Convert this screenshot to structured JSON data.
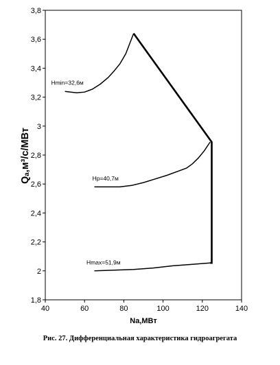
{
  "caption": "Рис. 27. Дифференциальная характеристика гидроагрегата",
  "chart_data": {
    "type": "line",
    "title": "",
    "xlabel": "Na,МВт",
    "ylabel": "Qₐ,м³/с/МВт",
    "xlim": [
      40,
      140
    ],
    "ylim": [
      1.8,
      3.8
    ],
    "x_ticks": [
      40,
      60,
      80,
      100,
      120,
      140
    ],
    "y_ticks": [
      1.8,
      2.0,
      2.2,
      2.4,
      2.6,
      2.8,
      3.0,
      3.2,
      3.4,
      3.6,
      3.8
    ],
    "x_tick_labels": [
      "40",
      "60",
      "80",
      "100",
      "120",
      "140"
    ],
    "y_tick_labels": [
      "1,8",
      "2",
      "2,2",
      "2,4",
      "2,6",
      "2,8",
      "3",
      "3,2",
      "3,4",
      "3,6",
      "3,8"
    ],
    "grid": false,
    "series": [
      {
        "name": "Hmin=32,6м",
        "x": [
          50,
          53,
          56,
          60,
          64,
          68,
          72,
          75,
          78,
          81,
          83,
          85
        ],
        "y": [
          3.24,
          3.235,
          3.23,
          3.235,
          3.255,
          3.29,
          3.335,
          3.38,
          3.43,
          3.5,
          3.57,
          3.64
        ]
      },
      {
        "name": "Hp=40,7м",
        "x": [
          65,
          72,
          78,
          84,
          90,
          96,
          102,
          108,
          112,
          115,
          118,
          121,
          124
        ],
        "y": [
          2.58,
          2.58,
          2.58,
          2.59,
          2.61,
          2.635,
          2.66,
          2.69,
          2.71,
          2.74,
          2.78,
          2.83,
          2.89
        ]
      },
      {
        "name": "Hmax=51,9м",
        "x": [
          65,
          75,
          85,
          95,
          105,
          115,
          124
        ],
        "y": [
          2.0,
          2.005,
          2.01,
          2.02,
          2.035,
          2.045,
          2.055
        ]
      },
      {
        "name": "",
        "boundary": true,
        "x": [
          85,
          124.8,
          124.8,
          124
        ],
        "y": [
          3.64,
          2.89,
          2.055,
          2.055
        ]
      }
    ],
    "annotations": [
      {
        "text": "Hmin=32,6м",
        "x": 43,
        "y": 3.285
      },
      {
        "text": "Hp=40,7м",
        "x": 64,
        "y": 2.625
      },
      {
        "text": "Hmax=51,9м",
        "x": 61,
        "y": 2.045
      }
    ]
  }
}
